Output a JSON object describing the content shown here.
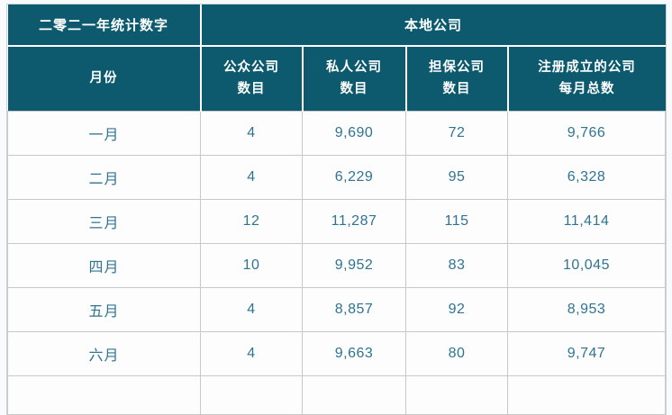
{
  "table": {
    "title_left": "二零二一年统计数字",
    "title_right": "本地公司",
    "columns": [
      {
        "line1": "月份",
        "line2": ""
      },
      {
        "line1": "公众公司",
        "line2": "数目"
      },
      {
        "line1": "私人公司",
        "line2": "数目"
      },
      {
        "line1": "担保公司",
        "line2": "数目"
      },
      {
        "line1": "注册成立的公司",
        "line2": "每月总数"
      }
    ],
    "rows": [
      {
        "month": "一月",
        "values": [
          "4",
          "9,690",
          "72",
          "9,766"
        ]
      },
      {
        "month": "二月",
        "values": [
          "4",
          "6,229",
          "95",
          "6,328"
        ]
      },
      {
        "month": "三月",
        "values": [
          "12",
          "11,287",
          "115",
          "11,414"
        ]
      },
      {
        "month": "四月",
        "values": [
          "10",
          "9,952",
          "83",
          "10,045"
        ]
      },
      {
        "month": "五月",
        "values": [
          "4",
          "8,857",
          "92",
          "8,953"
        ]
      },
      {
        "month": "六月",
        "values": [
          "4",
          "9,663",
          "80",
          "9,747"
        ]
      }
    ],
    "colors": {
      "header_bg": "#0d5a6e",
      "header_text": "#ffffff",
      "body_text": "#2e7491",
      "grid": "#c8c8c8",
      "cell_bg": "#fdfdfe",
      "page_bg": "#f8fafc"
    }
  },
  "chart_data": {
    "type": "table",
    "title": "二零二一年统计数字 — 本地公司",
    "columns": [
      "月份",
      "公众公司数目",
      "私人公司数目",
      "担保公司数目",
      "注册成立的公司每月总数"
    ],
    "rows": [
      [
        "一月",
        4,
        9690,
        72,
        9766
      ],
      [
        "二月",
        4,
        6229,
        95,
        6328
      ],
      [
        "三月",
        12,
        11287,
        115,
        11414
      ],
      [
        "四月",
        10,
        9952,
        83,
        10045
      ],
      [
        "五月",
        4,
        8857,
        92,
        8953
      ],
      [
        "六月",
        4,
        9663,
        80,
        9747
      ]
    ]
  }
}
